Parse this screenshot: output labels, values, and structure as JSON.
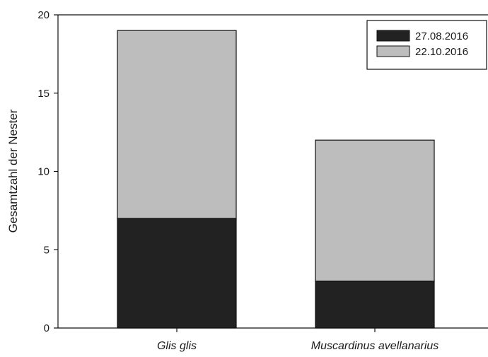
{
  "chart_data": {
    "type": "bar",
    "stacked": true,
    "categories": [
      "Glis glis",
      "Muscardinus avellanarius"
    ],
    "series": [
      {
        "name": "27.08.2016",
        "values": [
          7,
          3
        ],
        "color": "#222222"
      },
      {
        "name": "22.10.2016",
        "values": [
          12,
          9
        ],
        "color": "#bdbdbd"
      }
    ],
    "ylabel": "Gesamtzahl der Nester",
    "xlabel": "",
    "ylim": [
      0,
      20
    ],
    "yticks": [
      0,
      5,
      10,
      15,
      20
    ],
    "grid": false,
    "legend_position": "top-right"
  }
}
